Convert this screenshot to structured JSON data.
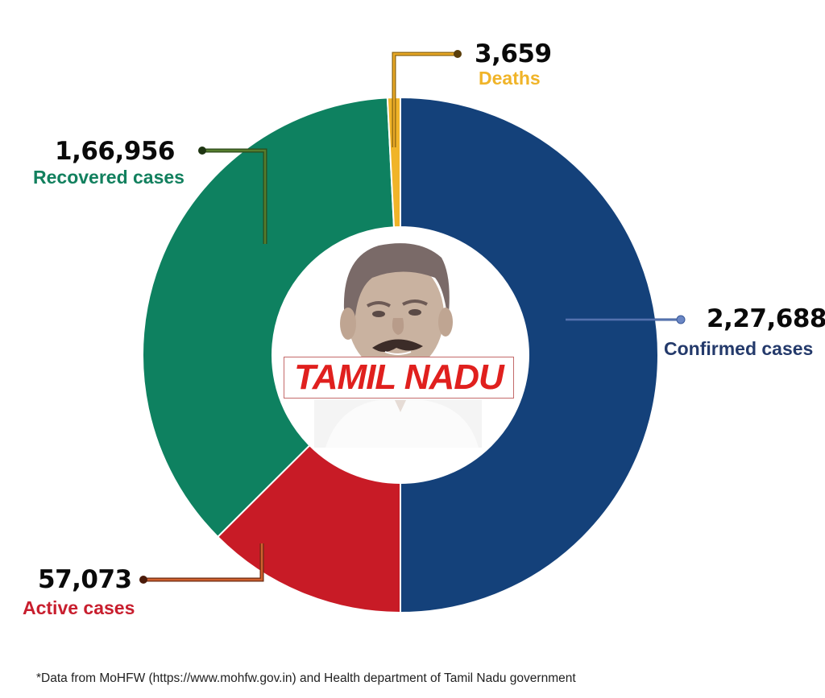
{
  "chart_data": {
    "type": "pie",
    "subtype": "donut",
    "title": "TAMIL NADU",
    "categories": [
      "Confirmed cases",
      "Active cases",
      "Recovered cases",
      "Deaths"
    ],
    "values": [
      227688,
      57073,
      166956,
      3659
    ],
    "display_values": [
      "2,27,688",
      "57,073",
      "1,66,956",
      "3,659"
    ],
    "colors": [
      "#14417a",
      "#c81b26",
      "#0e8160",
      "#f0b429"
    ],
    "start_angle_deg": 0,
    "legend_position": "leader-line labels around donut",
    "note": "Confirmed occupies the right half; Active + Recovered + Deaths compose the left half."
  },
  "labels": {
    "deaths": {
      "value": "3,659",
      "label": "Deaths",
      "color": "#f0b429"
    },
    "recovered": {
      "value": "1,66,956",
      "label": "Recovered cases",
      "color": "#12805e"
    },
    "confirmed": {
      "value": "2,27,688",
      "label": "Confirmed cases",
      "color": "#243a6b"
    },
    "active": {
      "value": "57,073",
      "label": "Active cases",
      "color": "#c81e2e"
    }
  },
  "center": {
    "title": "TAMIL NADU",
    "image": "chief-minister-portrait"
  },
  "footer": {
    "source": "*Data from MoHFW (https://www.mohfw.gov.in) and Health department of Tamil Nadu government"
  }
}
